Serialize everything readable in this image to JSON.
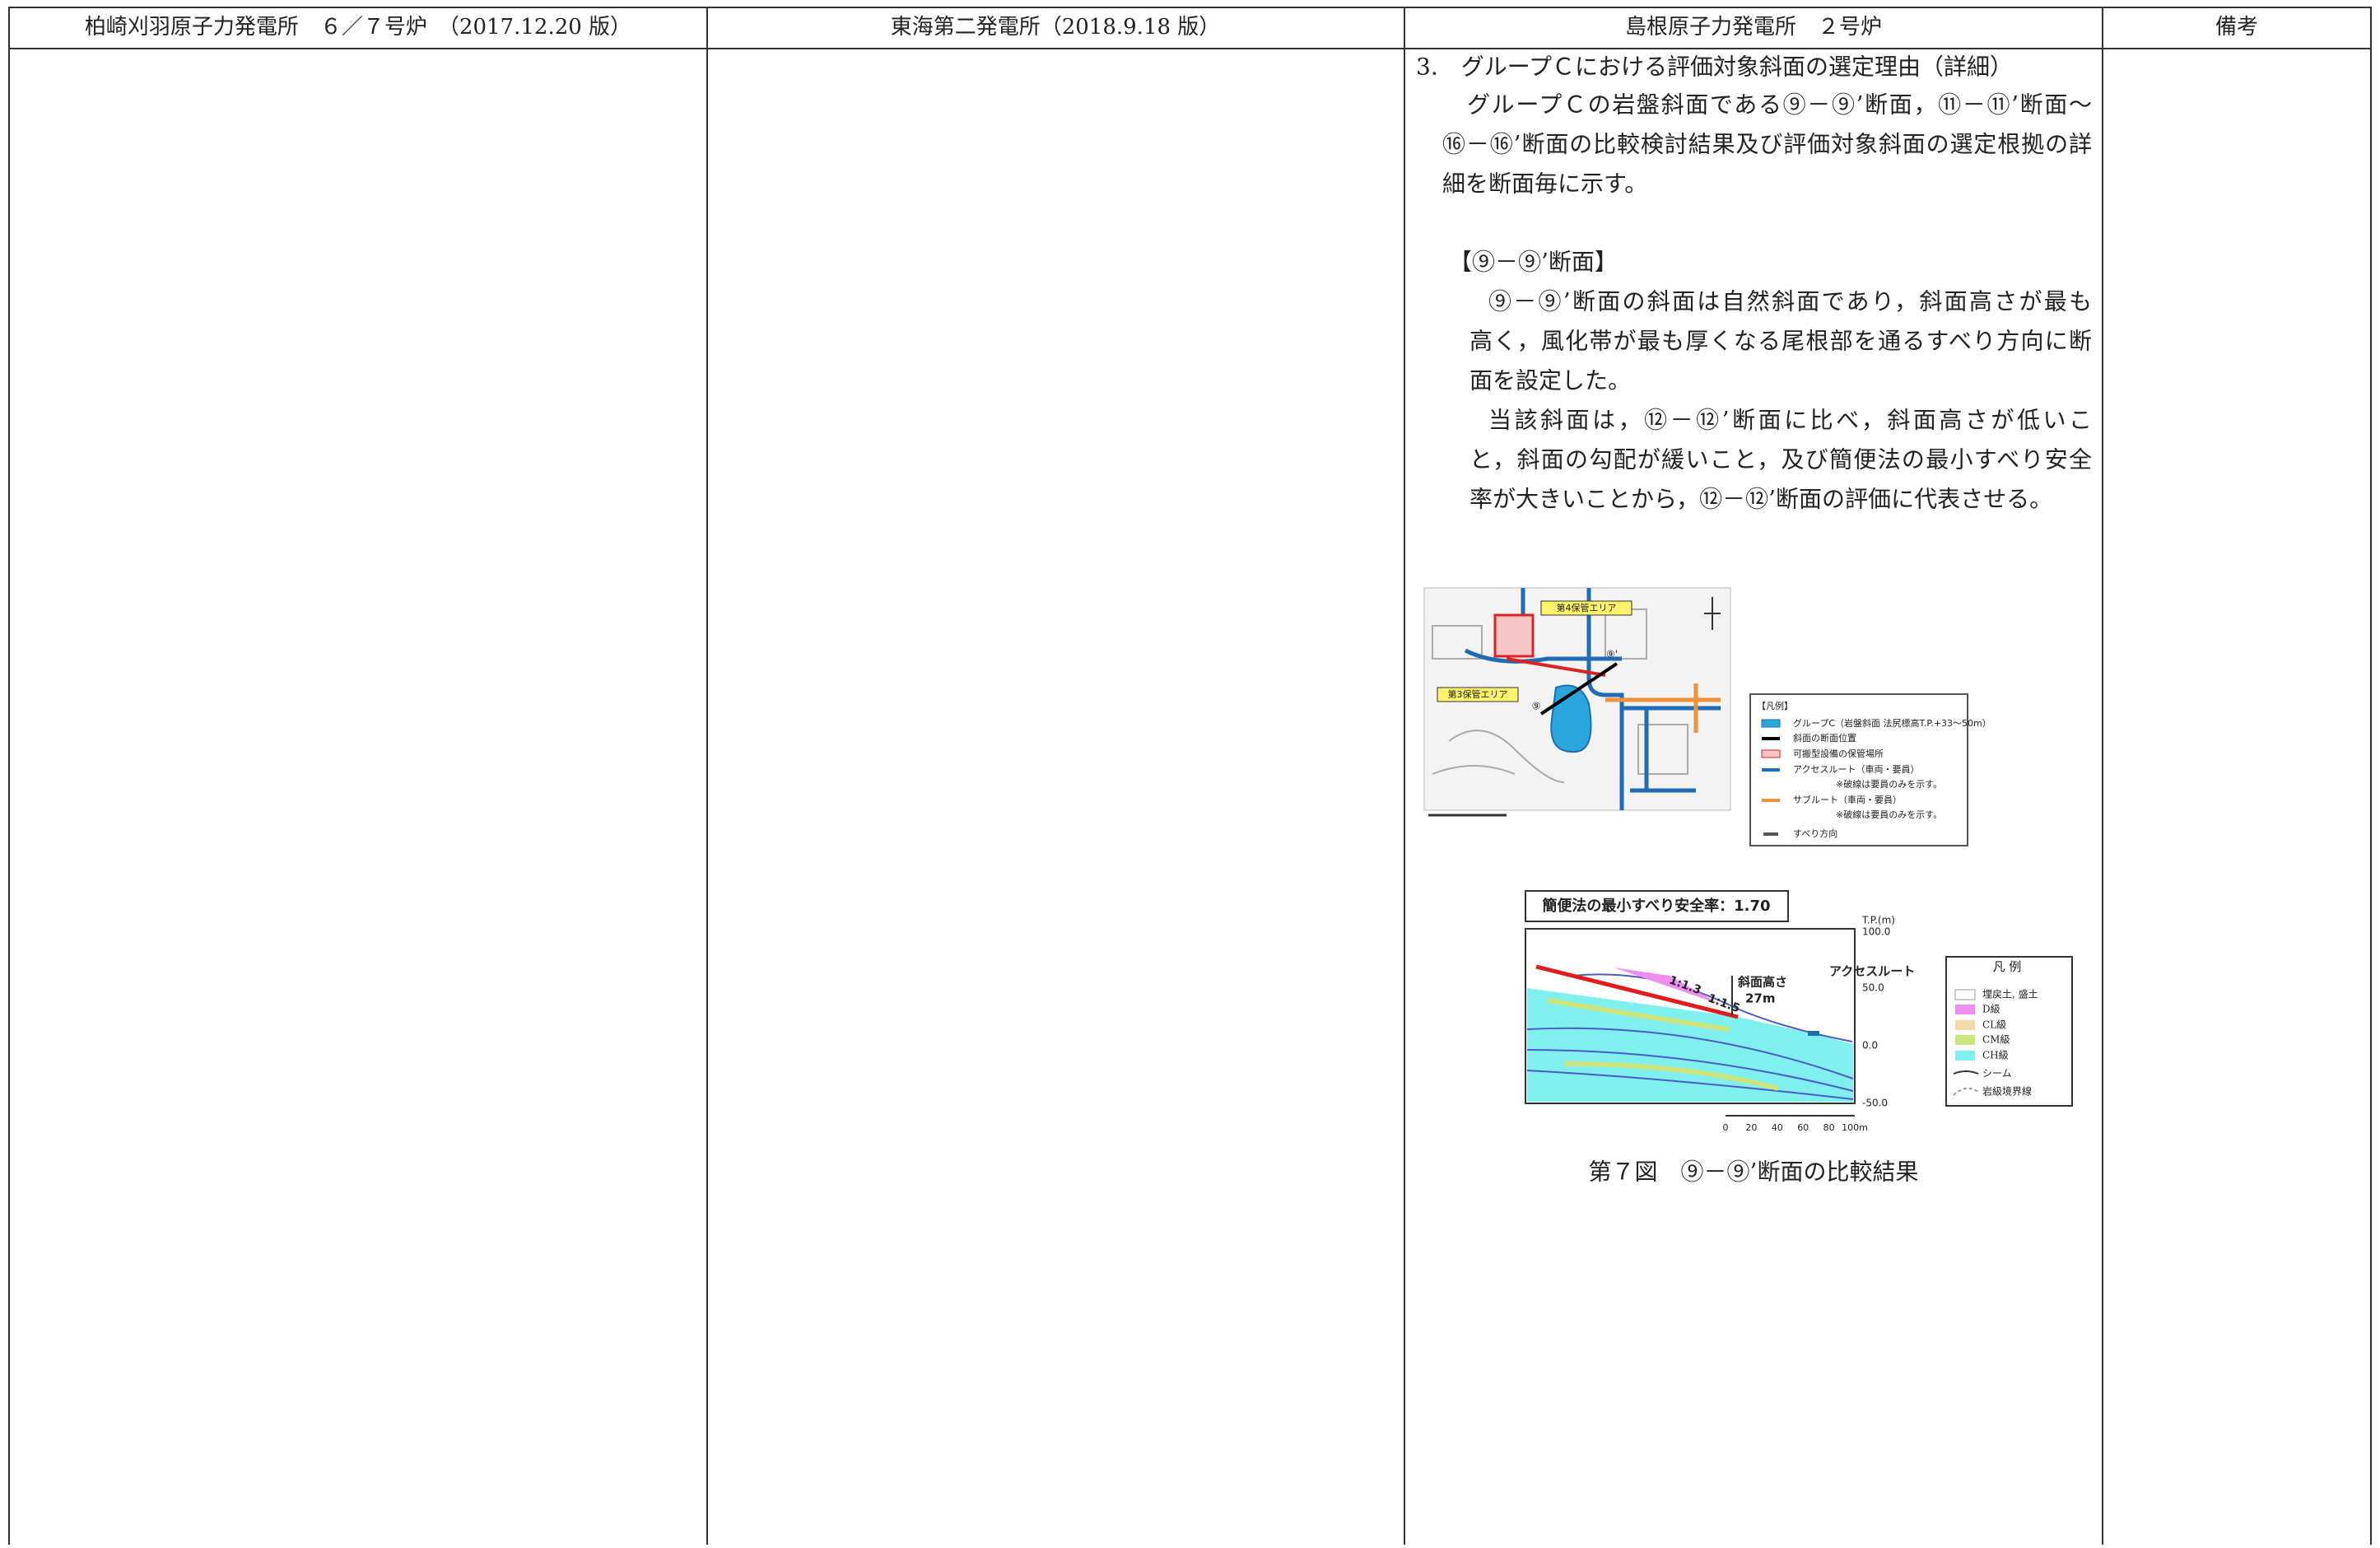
{
  "header": {
    "columns": [
      "柏崎刈羽原子力発電所　６／７号炉　（2017.12.20 版）",
      "東海第二発電所（2018.9.18 版）",
      "島根原子力発電所　２号炉",
      "備考"
    ]
  },
  "section": {
    "heading": "3.　グループＣにおける評価対象斜面の選定理由（詳細）",
    "intro": [
      "グループＣの岩盤斜面である⑨－⑨’断面，⑪－⑪’断面～",
      "⑯－⑯’断面の比較検討結果及び評価対象斜面の選定根拠の詳",
      "細を断面毎に示す。"
    ],
    "subheading": "【⑨－⑨’断面】",
    "paragraphs": [
      [
        "⑨－⑨’断面の斜面は自然斜面であり，斜面高さが最も",
        "高く，風化帯が最も厚くなる尾根部を通るすべり方向に断",
        "面を設定した。"
      ],
      [
        "当該斜面は，⑫－⑫’断面に比べ，斜面高さが低いこ",
        "と，斜面の勾配が緩いこと，及び簡便法の最小すべり安全",
        "率が大きいことから，⑫－⑫’断面の評価に代表させる。"
      ]
    ]
  },
  "map": {
    "labels": [
      "第4保管エリア",
      "第3保管エリア",
      "⑨",
      "⑨'"
    ],
    "legend_title": "【凡例】",
    "legend": [
      "グループC（岩盤斜面 法尻標高T.P.+33〜50m）",
      "斜面の断面位置",
      "可搬型設備の保管場所",
      "アクセスルート（車両・要員）",
      "※破線は要員のみを示す。",
      "サブルート（車両・要員）",
      "※破線は要員のみを示す。",
      "すべり方向"
    ]
  },
  "cross_section": {
    "title": "簡便法の最小すべり安全率：1.70",
    "axis_title": "T.P.(m)",
    "ticks": [
      "100.0",
      "50.0",
      "0.0",
      "-50.0"
    ],
    "labels": [
      "斜面高さ",
      "27m",
      "アクセスルート",
      "1:1.3",
      "1:1.5"
    ],
    "scale": [
      "0",
      "20",
      "40",
      "60",
      "80",
      "100m"
    ],
    "legend_title": "凡 例",
    "legend": [
      "埋戻土, 盛土",
      "D級",
      "CL級",
      "CM級",
      "CH級",
      "シーム",
      "岩級境界線"
    ]
  },
  "caption": "第７図　⑨－⑨’断面の比較結果"
}
